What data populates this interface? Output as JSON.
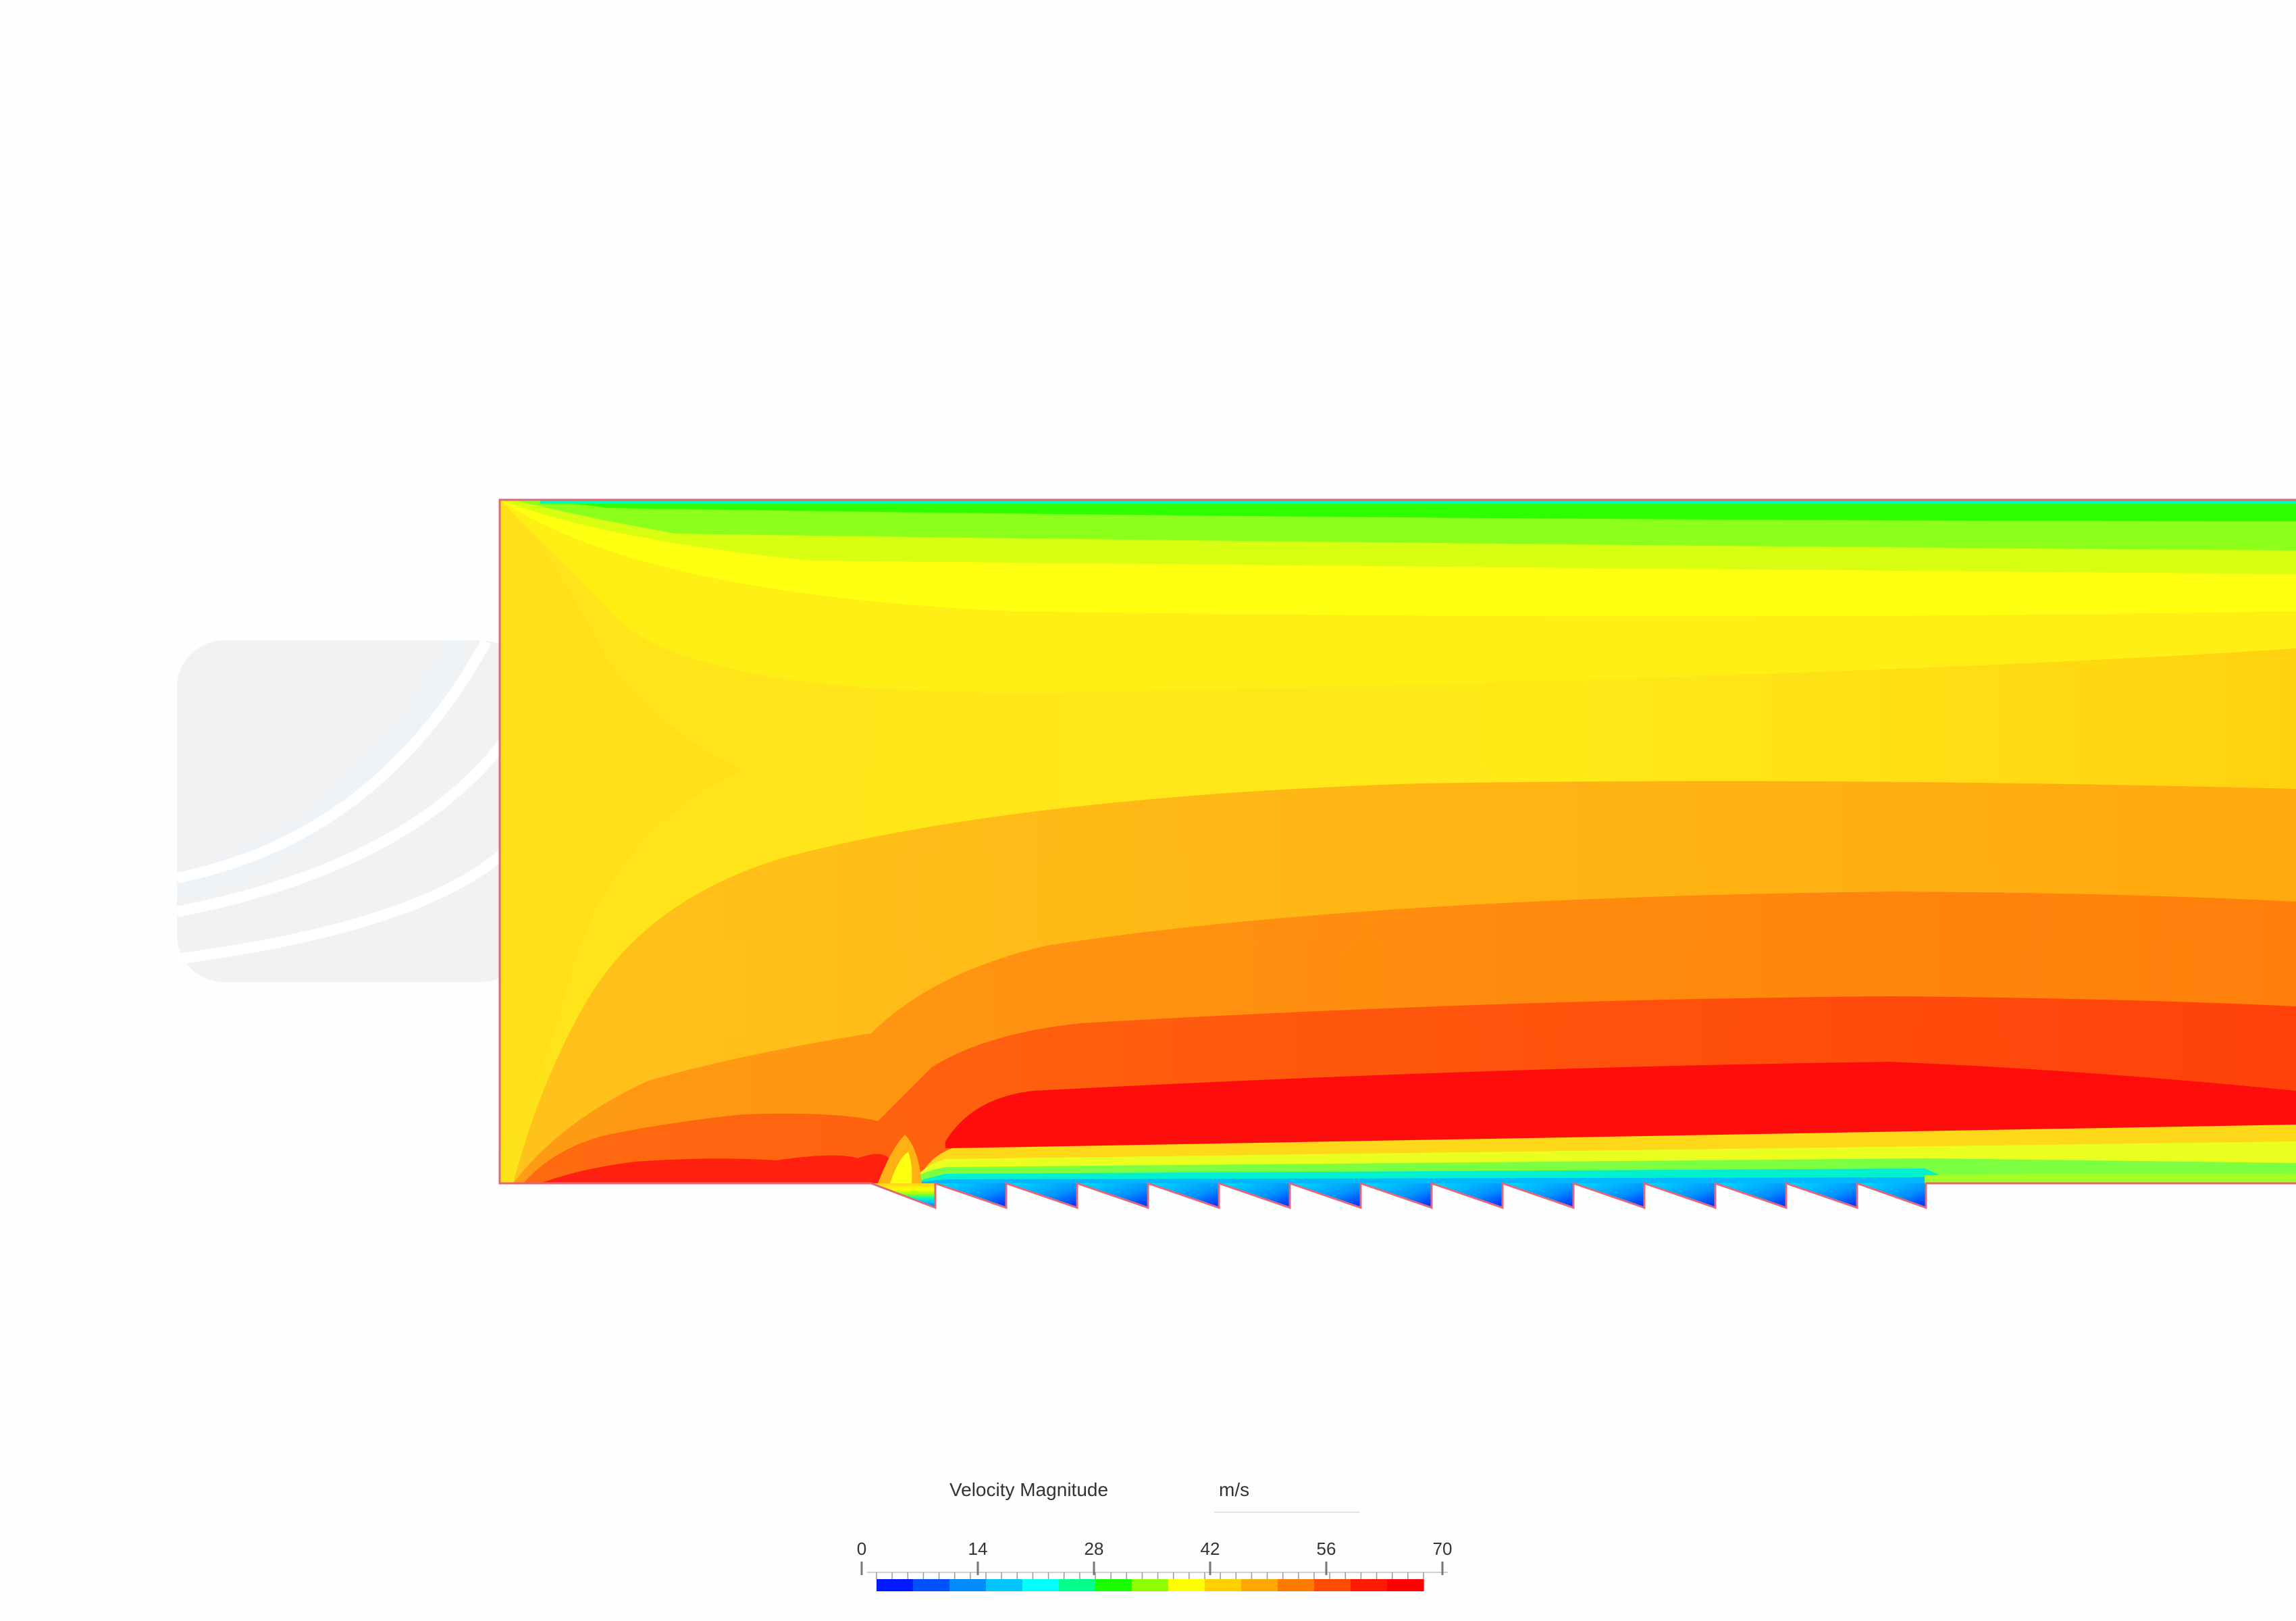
{
  "legend": {
    "title": "Velocity Magnitude",
    "unit": "m/s",
    "ticks": [
      "0",
      "14",
      "28",
      "42",
      "56",
      "70"
    ],
    "min": 0,
    "max": 70,
    "colors": [
      "#0019ff",
      "#0052ff",
      "#008cff",
      "#00c5ff",
      "#00ffff",
      "#00ff8c",
      "#19ff00",
      "#8cff00",
      "#ffff00",
      "#ffd000",
      "#ffa800",
      "#ff7a00",
      "#ff4a00",
      "#ff1a00",
      "#ff0000"
    ]
  },
  "field_colors": {
    "bands": [
      "#1aff00",
      "#8cff1a",
      "#d4ff10",
      "#ffff10",
      "#ffe81a",
      "#ffc81a",
      "#ff9d12",
      "#ff6a0f",
      "#ff4a0a",
      "#ff0d0d"
    ],
    "outline": "#e0687a",
    "logo": "#f2f2f2"
  }
}
